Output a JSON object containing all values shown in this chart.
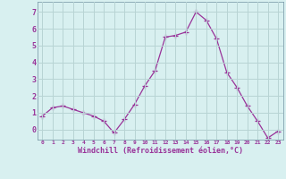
{
  "x": [
    0,
    1,
    2,
    3,
    4,
    5,
    6,
    7,
    8,
    9,
    10,
    11,
    12,
    13,
    14,
    15,
    16,
    17,
    18,
    19,
    20,
    21,
    22,
    23
  ],
  "y": [
    0.8,
    1.3,
    1.4,
    1.2,
    1.0,
    0.8,
    0.5,
    -0.2,
    0.6,
    1.5,
    2.6,
    3.5,
    5.5,
    5.6,
    5.8,
    7.0,
    6.5,
    5.4,
    3.4,
    2.5,
    1.4,
    0.5,
    -0.5,
    -0.1
  ],
  "line_color": "#993399",
  "marker": "+",
  "marker_size": 4,
  "bg_color": "#d8f0f0",
  "grid_color": "#b8d4d4",
  "xlabel": "Windchill (Refroidissement éolien,°C)",
  "xlabel_color": "#993399",
  "tick_color": "#993399",
  "ylabel_ticks": [
    0,
    1,
    2,
    3,
    4,
    5,
    6,
    7
  ],
  "ylim": [
    -0.6,
    7.6
  ],
  "xlim": [
    -0.5,
    23.5
  ],
  "title": ""
}
